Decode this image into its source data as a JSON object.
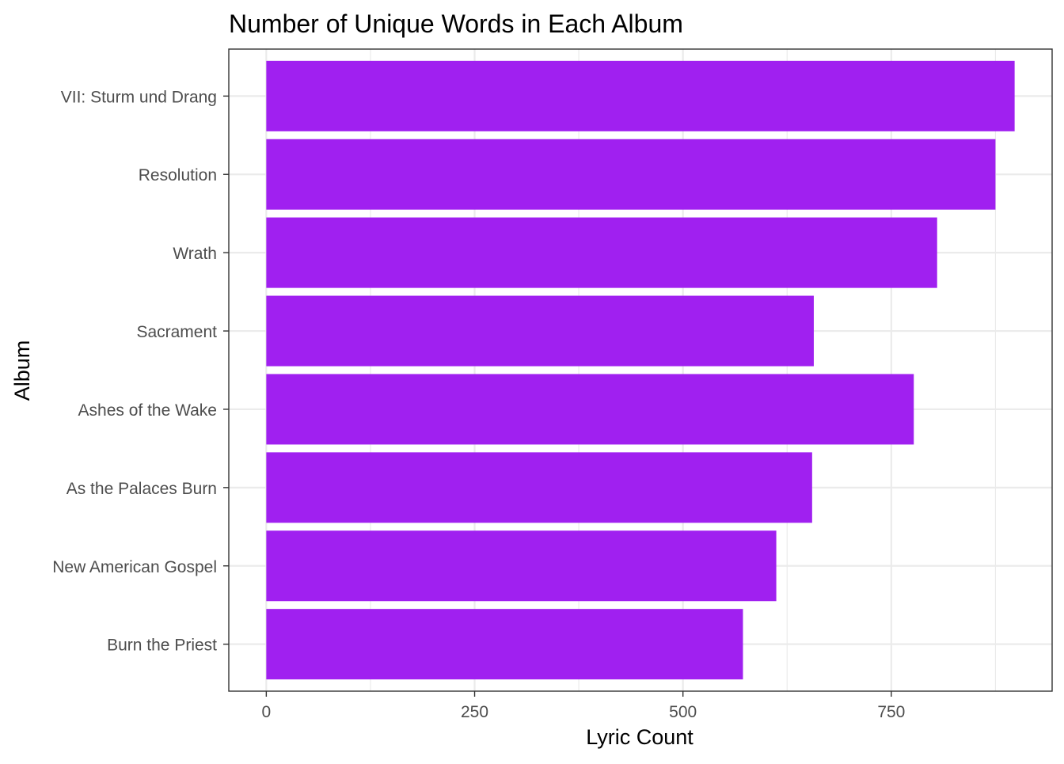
{
  "chart_data": {
    "type": "bar",
    "orientation": "horizontal",
    "title": "Number of Unique Words in Each Album",
    "xlabel": "Lyric Count",
    "ylabel": "Album",
    "categories": [
      "Burn the Priest",
      "New American Gospel",
      "As the Palaces Burn",
      "Ashes of the Wake",
      "Sacrament",
      "Wrath",
      "Resolution",
      "VII: Sturm und Drang"
    ],
    "values": [
      572,
      612,
      655,
      777,
      657,
      805,
      875,
      898
    ],
    "xlim": [
      -45,
      943
    ],
    "xticks": [
      0,
      250,
      500,
      750
    ],
    "xtick_labels": [
      "0",
      "250",
      "500",
      "750"
    ],
    "grid": true,
    "bar_color": "#A020F0",
    "panel_border_color": "#333333",
    "grid_color": "#EBEBEB"
  }
}
